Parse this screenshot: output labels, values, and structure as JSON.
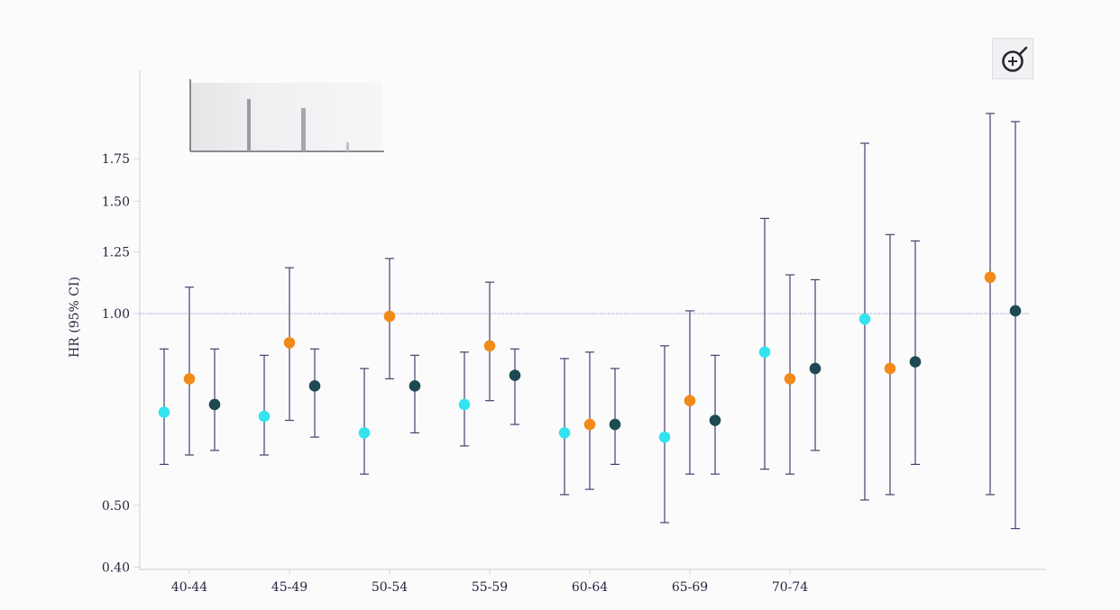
{
  "chart_data": {
    "type": "scatter",
    "subtype": "forest-plot-errorbars",
    "title": "",
    "xlabel": "",
    "ylabel": "HR (95% CI)",
    "yscale": "log",
    "ylim": [
      0.4,
      2.1
    ],
    "yticks": [
      {
        "value": 0.4,
        "label": "0.40"
      },
      {
        "value": 0.5,
        "label": "0.50"
      },
      {
        "value": 1.0,
        "label": "1.00"
      },
      {
        "value": 1.25,
        "label": "1.25"
      },
      {
        "value": 1.5,
        "label": "1.50"
      },
      {
        "value": 1.75,
        "label": "1.75"
      }
    ],
    "reference_line": 1.0,
    "categories": [
      "40-44",
      "45-49",
      "50-54",
      "55-59",
      "60-64",
      "65-69",
      "70-74",
      "",
      ""
    ],
    "colors": {
      "series_a": "#33e4f0",
      "series_b": "#f28a1a",
      "series_c": "#1d4a52",
      "errorbar": "#4a3f6b",
      "refline": "#9a9ac8",
      "axis": "#d6d6dc"
    },
    "series": [
      {
        "color_key": "series_a",
        "points": [
          {
            "category": "40-44",
            "hr": 0.7,
            "lower": 0.58,
            "upper": 0.88
          },
          {
            "category": "45-49",
            "hr": 0.69,
            "lower": 0.6,
            "upper": 0.86
          },
          {
            "category": "50-54",
            "hr": 0.65,
            "lower": 0.56,
            "upper": 0.82
          },
          {
            "category": "55-59",
            "hr": 0.72,
            "lower": 0.62,
            "upper": 0.87
          },
          {
            "category": "60-64",
            "hr": 0.65,
            "lower": 0.52,
            "upper": 0.85
          },
          {
            "category": "65-69",
            "hr": 0.64,
            "lower": 0.47,
            "upper": 0.89
          },
          {
            "category": "70-74",
            "hr": 0.87,
            "lower": 0.57,
            "upper": 1.41
          },
          {
            "category": "",
            "hr": 0.98,
            "lower": 0.51,
            "upper": 1.85
          }
        ]
      },
      {
        "color_key": "series_b",
        "points": [
          {
            "category": "40-44",
            "hr": 0.79,
            "lower": 0.6,
            "upper": 1.1
          },
          {
            "category": "45-49",
            "hr": 0.9,
            "lower": 0.68,
            "upper": 1.18
          },
          {
            "category": "50-54",
            "hr": 0.99,
            "lower": 0.79,
            "upper": 1.22
          },
          {
            "category": "55-59",
            "hr": 0.89,
            "lower": 0.73,
            "upper": 1.12
          },
          {
            "category": "60-64",
            "hr": 0.67,
            "lower": 0.53,
            "upper": 0.87
          },
          {
            "category": "65-69",
            "hr": 0.73,
            "lower": 0.56,
            "upper": 1.01
          },
          {
            "category": "70-74",
            "hr": 0.79,
            "lower": 0.56,
            "upper": 1.15
          },
          {
            "category": "",
            "hr": 0.82,
            "lower": 0.52,
            "upper": 1.33
          },
          {
            "category": "",
            "hr": 1.14,
            "lower": 0.52,
            "upper": 2.06
          }
        ]
      },
      {
        "color_key": "series_c",
        "points": [
          {
            "category": "40-44",
            "hr": 0.72,
            "lower": 0.61,
            "upper": 0.88
          },
          {
            "category": "45-49",
            "hr": 0.77,
            "lower": 0.64,
            "upper": 0.88
          },
          {
            "category": "50-54",
            "hr": 0.77,
            "lower": 0.65,
            "upper": 0.86
          },
          {
            "category": "55-59",
            "hr": 0.8,
            "lower": 0.67,
            "upper": 0.88
          },
          {
            "category": "60-64",
            "hr": 0.67,
            "lower": 0.58,
            "upper": 0.82
          },
          {
            "category": "65-69",
            "hr": 0.68,
            "lower": 0.56,
            "upper": 0.86
          },
          {
            "category": "70-74",
            "hr": 0.82,
            "lower": 0.61,
            "upper": 1.13
          },
          {
            "category": "",
            "hr": 0.84,
            "lower": 0.58,
            "upper": 1.3
          },
          {
            "category": "",
            "hr": 1.01,
            "lower": 0.46,
            "upper": 2.0
          }
        ]
      }
    ]
  },
  "toolbar": {
    "zoom_icon": "zoom-in-icon"
  }
}
